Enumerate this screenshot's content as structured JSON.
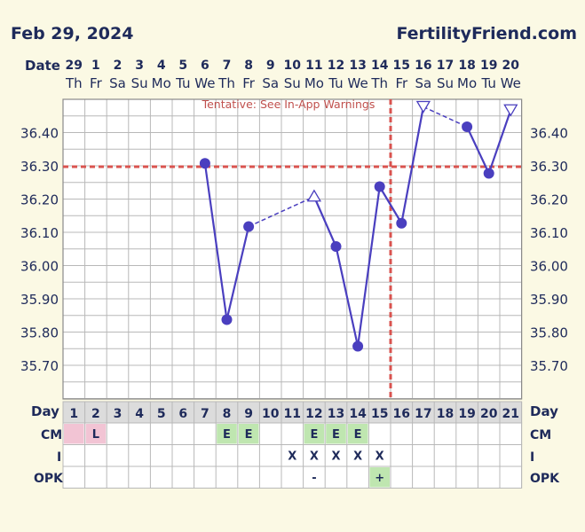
{
  "header": {
    "date": "Feb 29, 2024",
    "site": "FertilityFriend.com"
  },
  "chart_data": {
    "type": "line",
    "row_labels": {
      "date": "Date",
      "day": "Day",
      "cm": "CM",
      "i": "I",
      "opk": "OPK"
    },
    "dates": [
      "29",
      "1",
      "2",
      "3",
      "4",
      "5",
      "6",
      "7",
      "8",
      "9",
      "10",
      "11",
      "12",
      "13",
      "14",
      "15",
      "16",
      "17",
      "18",
      "19",
      "20"
    ],
    "weekdays": [
      "Th",
      "Fr",
      "Sa",
      "Su",
      "Mo",
      "Tu",
      "We",
      "Th",
      "Fr",
      "Sa",
      "Su",
      "Mo",
      "Tu",
      "We",
      "Th",
      "Fr",
      "Sa",
      "Su",
      "Mo",
      "Tu",
      "We"
    ],
    "days": [
      "1",
      "2",
      "3",
      "4",
      "5",
      "6",
      "7",
      "8",
      "9",
      "10",
      "11",
      "12",
      "13",
      "14",
      "15",
      "16",
      "17",
      "18",
      "19",
      "20",
      "21"
    ],
    "y_ticks": [
      "36.40",
      "36.30",
      "36.20",
      "36.10",
      "36.00",
      "35.90",
      "35.80",
      "35.70"
    ],
    "ylim": [
      35.65,
      36.5
    ],
    "coverline": 36.3,
    "ovulation_day": 16,
    "annotation": "Tentative: See In-App Warnings",
    "temperatures": [
      {
        "day": 7,
        "temp": 36.31,
        "marker": "dot"
      },
      {
        "day": 8,
        "temp": 35.84,
        "marker": "dot"
      },
      {
        "day": 9,
        "temp": 36.12,
        "marker": "dot"
      },
      {
        "day": 12,
        "temp": 36.21,
        "marker": "open-triangle-up"
      },
      {
        "day": 13,
        "temp": 36.06,
        "marker": "dot"
      },
      {
        "day": 14,
        "temp": 35.76,
        "marker": "dot"
      },
      {
        "day": 15,
        "temp": 36.24,
        "marker": "dot"
      },
      {
        "day": 16,
        "temp": 36.13,
        "marker": "dot"
      },
      {
        "day": 17,
        "temp": 36.48,
        "marker": "open-triangle-down"
      },
      {
        "day": 19,
        "temp": 36.42,
        "marker": "dot"
      },
      {
        "day": 20,
        "temp": 36.28,
        "marker": "dot"
      },
      {
        "day": 21,
        "temp": 36.47,
        "marker": "open-triangle-down"
      }
    ],
    "dashed_segments": [
      [
        9,
        12
      ],
      [
        17,
        19
      ]
    ],
    "cm": [
      {
        "day": 1,
        "value": "",
        "color": "#f2c4d4"
      },
      {
        "day": 2,
        "value": "L",
        "color": "#f2c4d4"
      },
      {
        "day": 8,
        "value": "E",
        "color": "#bfe6b0"
      },
      {
        "day": 9,
        "value": "E",
        "color": "#bfe6b0"
      },
      {
        "day": 12,
        "value": "E",
        "color": "#bfe6b0"
      },
      {
        "day": 13,
        "value": "E",
        "color": "#bfe6b0"
      },
      {
        "day": 14,
        "value": "E",
        "color": "#bfe6b0"
      }
    ],
    "intercourse": [
      {
        "day": 11,
        "value": "X"
      },
      {
        "day": 12,
        "value": "X"
      },
      {
        "day": 13,
        "value": "X"
      },
      {
        "day": 14,
        "value": "X"
      },
      {
        "day": 15,
        "value": "X"
      }
    ],
    "opk": [
      {
        "day": 12,
        "value": "-",
        "color": ""
      },
      {
        "day": 15,
        "value": "+",
        "color": "#bfe6b0"
      }
    ],
    "colors": {
      "line": "#4a3fbf",
      "coverline": "#d9534f",
      "grid": "#b8b8b8",
      "plot_bg": "#ffffff"
    }
  }
}
